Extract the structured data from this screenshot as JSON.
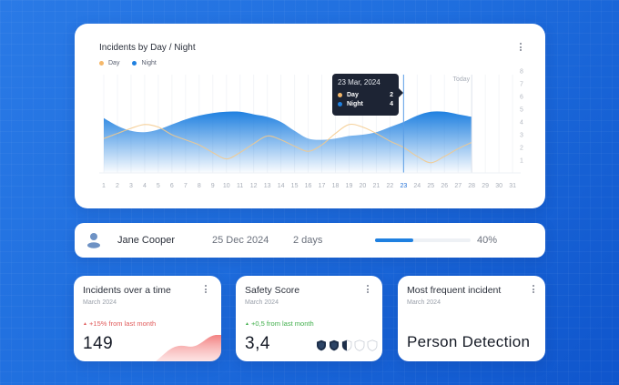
{
  "background": {
    "color_start": "#2a7ae6",
    "color_end": "#0f55cc"
  },
  "chart_card": {
    "title": "Incidents by Day / Night",
    "menu_icon": "kebab-vertical-icon",
    "legend": [
      {
        "label": "Day",
        "color": "#f5b86a"
      },
      {
        "label": "Night",
        "color": "#1f80e0"
      }
    ],
    "today_label": "Today",
    "tooltip": {
      "date": "23 Mar, 2024",
      "rows": [
        {
          "label": "Day",
          "value": "2",
          "color": "#f5b86a"
        },
        {
          "label": "Night",
          "value": "4",
          "color": "#1f80e0"
        }
      ]
    }
  },
  "chart_data": {
    "type": "area",
    "title": "Incidents by Day / Night",
    "xlabel": "",
    "ylabel": "",
    "x": [
      1,
      2,
      3,
      4,
      5,
      6,
      7,
      8,
      9,
      10,
      11,
      12,
      13,
      14,
      15,
      16,
      17,
      18,
      19,
      20,
      21,
      22,
      23,
      24,
      25,
      26,
      27,
      28,
      29,
      30,
      31
    ],
    "x_tick_labels": [
      "1",
      "2",
      "3",
      "4",
      "5",
      "6",
      "7",
      "8",
      "9",
      "10",
      "11",
      "12",
      "13",
      "14",
      "15",
      "16",
      "17",
      "18",
      "19",
      "20",
      "21",
      "22",
      "23",
      "24",
      "25",
      "26",
      "27",
      "28",
      "29",
      "30",
      "31"
    ],
    "highlighted_x": 23,
    "today_x": 28,
    "y_ticks": [
      1,
      2,
      3,
      4,
      5,
      6,
      7,
      8
    ],
    "y_axis_position": "right",
    "ylim": [
      0,
      8
    ],
    "grid": true,
    "legend_position": "top-left",
    "series": [
      {
        "name": "Day",
        "type": "line",
        "color": "#f5b86a",
        "x": [
          1,
          2,
          3,
          4,
          5,
          6,
          7,
          8,
          9,
          10,
          11,
          12,
          13,
          14,
          15,
          16,
          17,
          18,
          19,
          20,
          21,
          22,
          23,
          24,
          25,
          26,
          27,
          28
        ],
        "values": [
          2.7,
          3.1,
          3.5,
          3.8,
          3.6,
          3.0,
          2.6,
          2.2,
          1.6,
          1.1,
          1.6,
          2.3,
          2.9,
          2.6,
          2.1,
          1.7,
          2.2,
          3.1,
          3.8,
          3.6,
          3.1,
          2.5,
          2.0,
          1.3,
          0.8,
          1.3,
          1.9,
          2.4
        ]
      },
      {
        "name": "Night",
        "type": "area",
        "color": "#1f80e0",
        "x": [
          1,
          2,
          3,
          4,
          5,
          6,
          7,
          8,
          9,
          10,
          11,
          12,
          13,
          14,
          15,
          16,
          17,
          18,
          19,
          20,
          21,
          22,
          23,
          24,
          25,
          26,
          27,
          28
        ],
        "values": [
          4.3,
          3.7,
          3.3,
          3.2,
          3.4,
          3.8,
          4.2,
          4.5,
          4.7,
          4.8,
          4.8,
          4.6,
          4.4,
          4.0,
          3.3,
          2.7,
          2.6,
          2.7,
          2.9,
          3.0,
          3.2,
          3.6,
          4.0,
          4.5,
          4.8,
          4.8,
          4.6,
          4.4
        ]
      }
    ]
  },
  "user_row": {
    "avatar_icon": "user-icon",
    "name": "Jane Cooper",
    "date": "25 Dec 2024",
    "duration": "2 days",
    "progress_percent": 40,
    "progress_label": "40%",
    "progress_color": "#1f80e0"
  },
  "stat_cards": [
    {
      "title": "Incidents over a time",
      "subtitle": "March 2024",
      "delta": "+15% from last month",
      "delta_color": "#e05a5a",
      "value": "149",
      "menu_icon": "kebab-vertical-icon"
    },
    {
      "title": "Safety Score",
      "subtitle": "March 2024",
      "delta": "+0,5 from last month",
      "delta_color": "#3fae4a",
      "value": "3,4",
      "shields": {
        "filled": 2,
        "half": 1,
        "empty": 2
      },
      "menu_icon": "kebab-vertical-icon"
    },
    {
      "title": "Most frequent incident",
      "subtitle": "March 2024",
      "value": "Person Detection",
      "menu_icon": "kebab-vertical-icon"
    }
  ]
}
